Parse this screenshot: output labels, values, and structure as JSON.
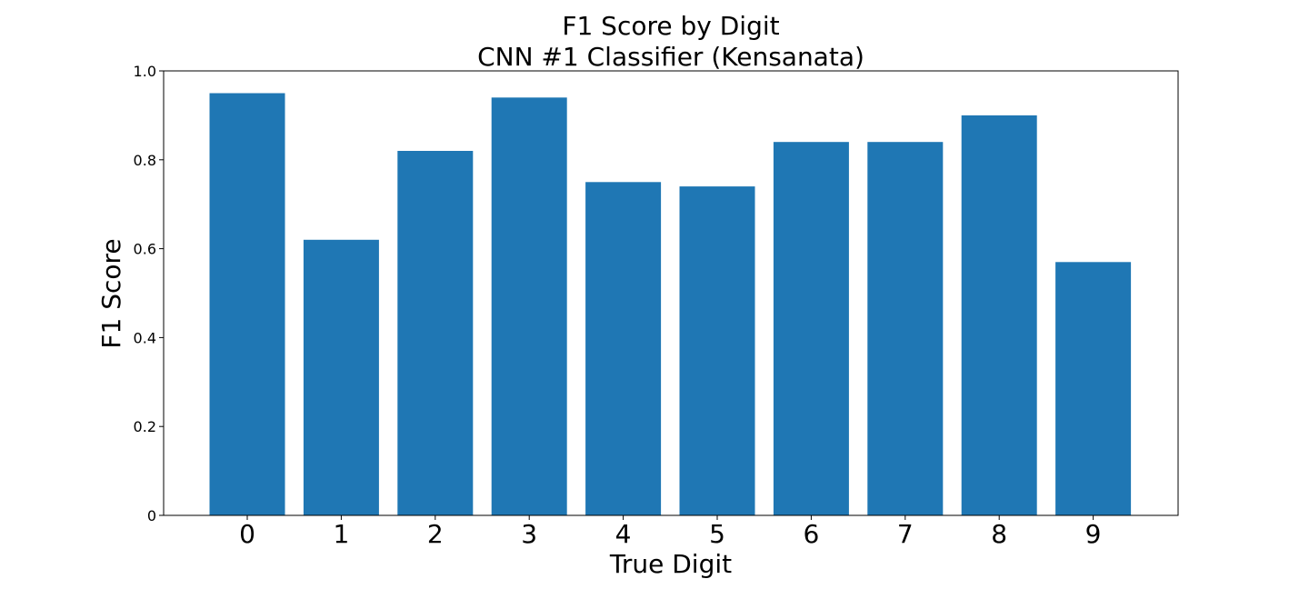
{
  "chart_data": {
    "type": "bar",
    "title": "F1 Score by Digit",
    "subtitle": "CNN #1 Classifier (Kensanata)",
    "xlabel": "True Digit",
    "ylabel": "F1 Score",
    "categories": [
      "0",
      "1",
      "2",
      "3",
      "4",
      "5",
      "6",
      "7",
      "8",
      "9"
    ],
    "values": [
      0.95,
      0.62,
      0.82,
      0.94,
      0.75,
      0.74,
      0.84,
      0.84,
      0.9,
      0.57
    ],
    "ylim": [
      0,
      1.0
    ],
    "yticks": [
      0,
      0.2,
      0.4,
      0.6,
      0.8,
      1.0
    ],
    "ytick_labels": [
      "0",
      "0.2",
      "0.4",
      "0.6",
      "0.8",
      "1.0"
    ],
    "grid": false,
    "legend": false,
    "bar_color": "#1f77b4"
  }
}
